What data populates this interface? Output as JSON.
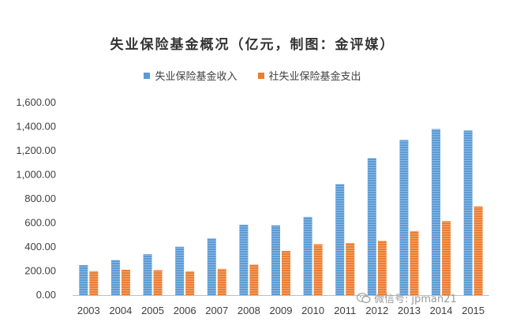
{
  "chart_data": {
    "type": "bar",
    "title": "失业保险基金概况（亿元，制图：金评媒）",
    "xlabel": "",
    "ylabel": "",
    "ylim": [
      0,
      1600
    ],
    "ytick_labels": [
      "0.00",
      "200.00",
      "400.00",
      "600.00",
      "800.00",
      "1,000.00",
      "1,200.00",
      "1,400.00",
      "1,600.00"
    ],
    "grid": false,
    "legend_position": "top-center",
    "categories": [
      "2003",
      "2004",
      "2005",
      "2006",
      "2007",
      "2008",
      "2009",
      "2010",
      "2011",
      "2012",
      "2013",
      "2014",
      "2015"
    ],
    "series": [
      {
        "name": "失业保险基金收入",
        "color": "#5b9bd5",
        "values": [
          249,
          291,
          340,
          402,
          472,
          585,
          580,
          650,
          923,
          1139,
          1289,
          1380,
          1368
        ]
      },
      {
        "name": "社失业保险基金支出",
        "color": "#ed7d31",
        "values": [
          199,
          211,
          207,
          198,
          218,
          254,
          367,
          423,
          433,
          451,
          532,
          615,
          737
        ]
      }
    ]
  },
  "watermark": {
    "text": "微信号: jpman21",
    "icon": "wechat-icon"
  }
}
